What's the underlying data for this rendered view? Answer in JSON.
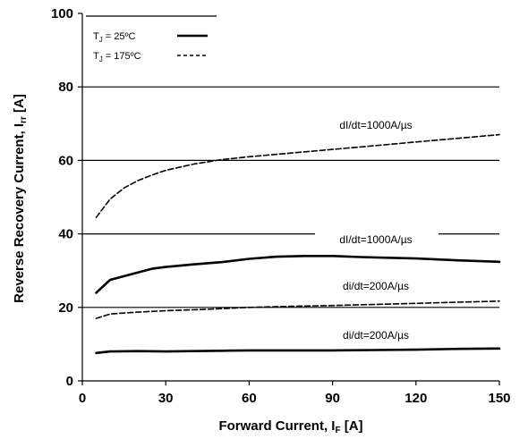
{
  "chart_data": {
    "type": "line",
    "xlabel": {
      "main": "Forward Current, I",
      "sub": "F",
      "suffix": " [A]"
    },
    "ylabel": {
      "main": "Reverse Recovery Current, I",
      "sub": "rr",
      "suffix": " [A]"
    },
    "xlim": [
      0,
      150
    ],
    "ylim": [
      0,
      100
    ],
    "xticks": [
      "0",
      "30",
      "60",
      "90",
      "120",
      "150"
    ],
    "yticks": [
      "0",
      "20",
      "40",
      "60",
      "80",
      "100"
    ],
    "grid": "horizontal",
    "legend": {
      "placement": "top-left",
      "entries": [
        {
          "prefix": "T",
          "sub": "J",
          "suffix": " = 25ºC",
          "style": "solid"
        },
        {
          "prefix": "T",
          "sub": "J",
          "suffix": " = 175ºC",
          "style": "dashed"
        }
      ]
    },
    "series": [
      {
        "style": "dashed",
        "annotation": "dI/dt=1000A/µs",
        "x": [
          5,
          10,
          15,
          20,
          25,
          30,
          40,
          50,
          60,
          75,
          90,
          105,
          120,
          135,
          150
        ],
        "y": [
          44.5,
          49.5,
          52.5,
          54.5,
          56,
          57.3,
          59,
          60.2,
          61,
          62,
          63,
          64,
          65,
          66,
          67
        ]
      },
      {
        "style": "solid",
        "annotation": "dI/dt=1000A/µs",
        "x": [
          5,
          10,
          15,
          20,
          25,
          30,
          40,
          50,
          60,
          70,
          80,
          90,
          100,
          110,
          120,
          135,
          150
        ],
        "y": [
          24,
          27.5,
          28.5,
          29.5,
          30.5,
          31,
          31.7,
          32.3,
          33.2,
          33.8,
          34,
          34,
          33.7,
          33.5,
          33.3,
          32.8,
          32.4
        ]
      },
      {
        "style": "dashed",
        "annotation": "di/dt=200A/µs",
        "x": [
          5,
          10,
          20,
          30,
          45,
          60,
          75,
          90,
          105,
          120,
          135,
          150
        ],
        "y": [
          17,
          18.2,
          18.7,
          19.1,
          19.5,
          20,
          20.3,
          20.5,
          20.8,
          21.1,
          21.4,
          21.7
        ]
      },
      {
        "style": "solid",
        "annotation": "di/dt=200A/µs",
        "x": [
          5,
          10,
          20,
          30,
          40,
          50,
          60,
          75,
          90,
          105,
          120,
          135,
          150
        ],
        "y": [
          7.6,
          8,
          8.1,
          8,
          8.1,
          8.2,
          8.3,
          8.3,
          8.3,
          8.4,
          8.5,
          8.7,
          8.8
        ]
      }
    ]
  }
}
